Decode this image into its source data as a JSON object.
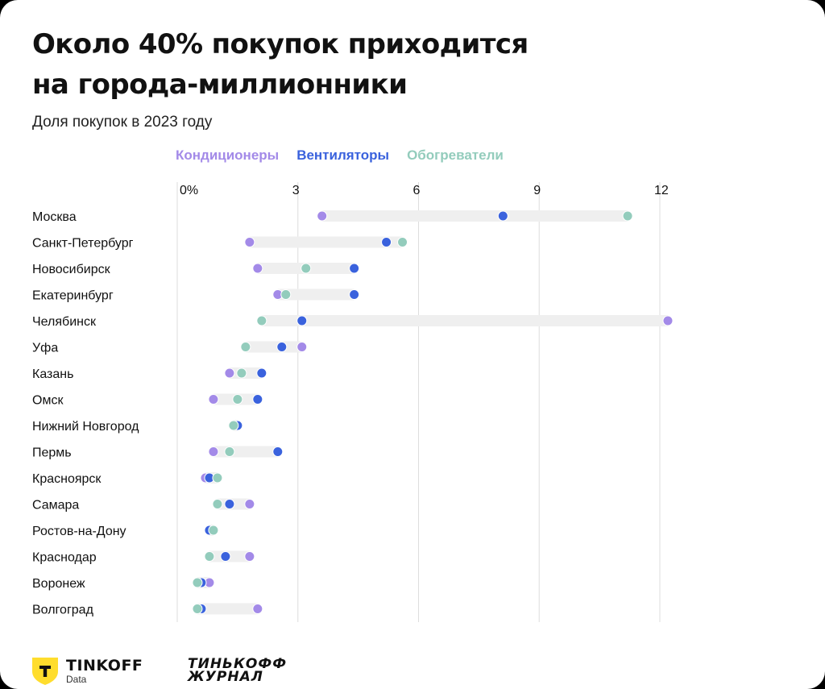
{
  "title_line1": "Около 40% покупок приходится",
  "title_line2": "на города-миллионники",
  "subtitle": "Доля покупок в 2023 году",
  "brand": {
    "name": "TINKOFF",
    "sub": "Data",
    "journal_line1": "ТИНЬКОФФ",
    "journal_line2": "ЖУРНАЛ",
    "logo_icon": "tinkoff-shield-icon"
  },
  "colors": {
    "cond": "#a38ae8",
    "vent": "#3a62dd",
    "heat": "#93ccbc",
    "range": "#efefef",
    "grid": "#dddddd"
  },
  "chart_data": {
    "type": "dot-range",
    "xlim": [
      0,
      12.5
    ],
    "ticks": [
      "0%",
      "3",
      "6",
      "9",
      "12"
    ],
    "tick_values": [
      0,
      3,
      6,
      9,
      12
    ],
    "series": [
      {
        "name": "Кондиционеры",
        "key": "cond"
      },
      {
        "name": "Вентиляторы",
        "key": "vent"
      },
      {
        "name": "Обогреватели",
        "key": "heat"
      }
    ],
    "categories": [
      "Москва",
      "Санкт-Петербург",
      "Новосибирск",
      "Екатеринбург",
      "Челябинск",
      "Уфа",
      "Казань",
      "Омск",
      "Нижний Новгород",
      "Пермь",
      "Красноярск",
      "Самара",
      "Ростов-на-Дону",
      "Краснодар",
      "Воронеж",
      "Волгоград"
    ],
    "values": [
      {
        "cond": 3.6,
        "vent": 8.1,
        "heat": 11.2
      },
      {
        "cond": 1.8,
        "vent": 5.2,
        "heat": 5.6
      },
      {
        "cond": 2.0,
        "vent": 4.4,
        "heat": 3.2
      },
      {
        "cond": 2.5,
        "vent": 4.4,
        "heat": 2.7
      },
      {
        "cond": 12.2,
        "vent": 3.1,
        "heat": 2.1
      },
      {
        "cond": 3.1,
        "vent": 2.6,
        "heat": 1.7
      },
      {
        "cond": 1.3,
        "vent": 2.1,
        "heat": 1.6
      },
      {
        "cond": 0.9,
        "vent": 2.0,
        "heat": 1.5
      },
      {
        "cond": 1.4,
        "vent": 1.5,
        "heat": 1.4
      },
      {
        "cond": 0.9,
        "vent": 2.5,
        "heat": 1.3
      },
      {
        "cond": 0.7,
        "vent": 0.8,
        "heat": 1.0
      },
      {
        "cond": 1.8,
        "vent": 1.3,
        "heat": 1.0
      },
      {
        "cond": 0.8,
        "vent": 0.8,
        "heat": 0.9
      },
      {
        "cond": 1.8,
        "vent": 1.2,
        "heat": 0.8
      },
      {
        "cond": 0.8,
        "vent": 0.6,
        "heat": 0.5
      },
      {
        "cond": 2.0,
        "vent": 0.6,
        "heat": 0.5
      }
    ]
  }
}
